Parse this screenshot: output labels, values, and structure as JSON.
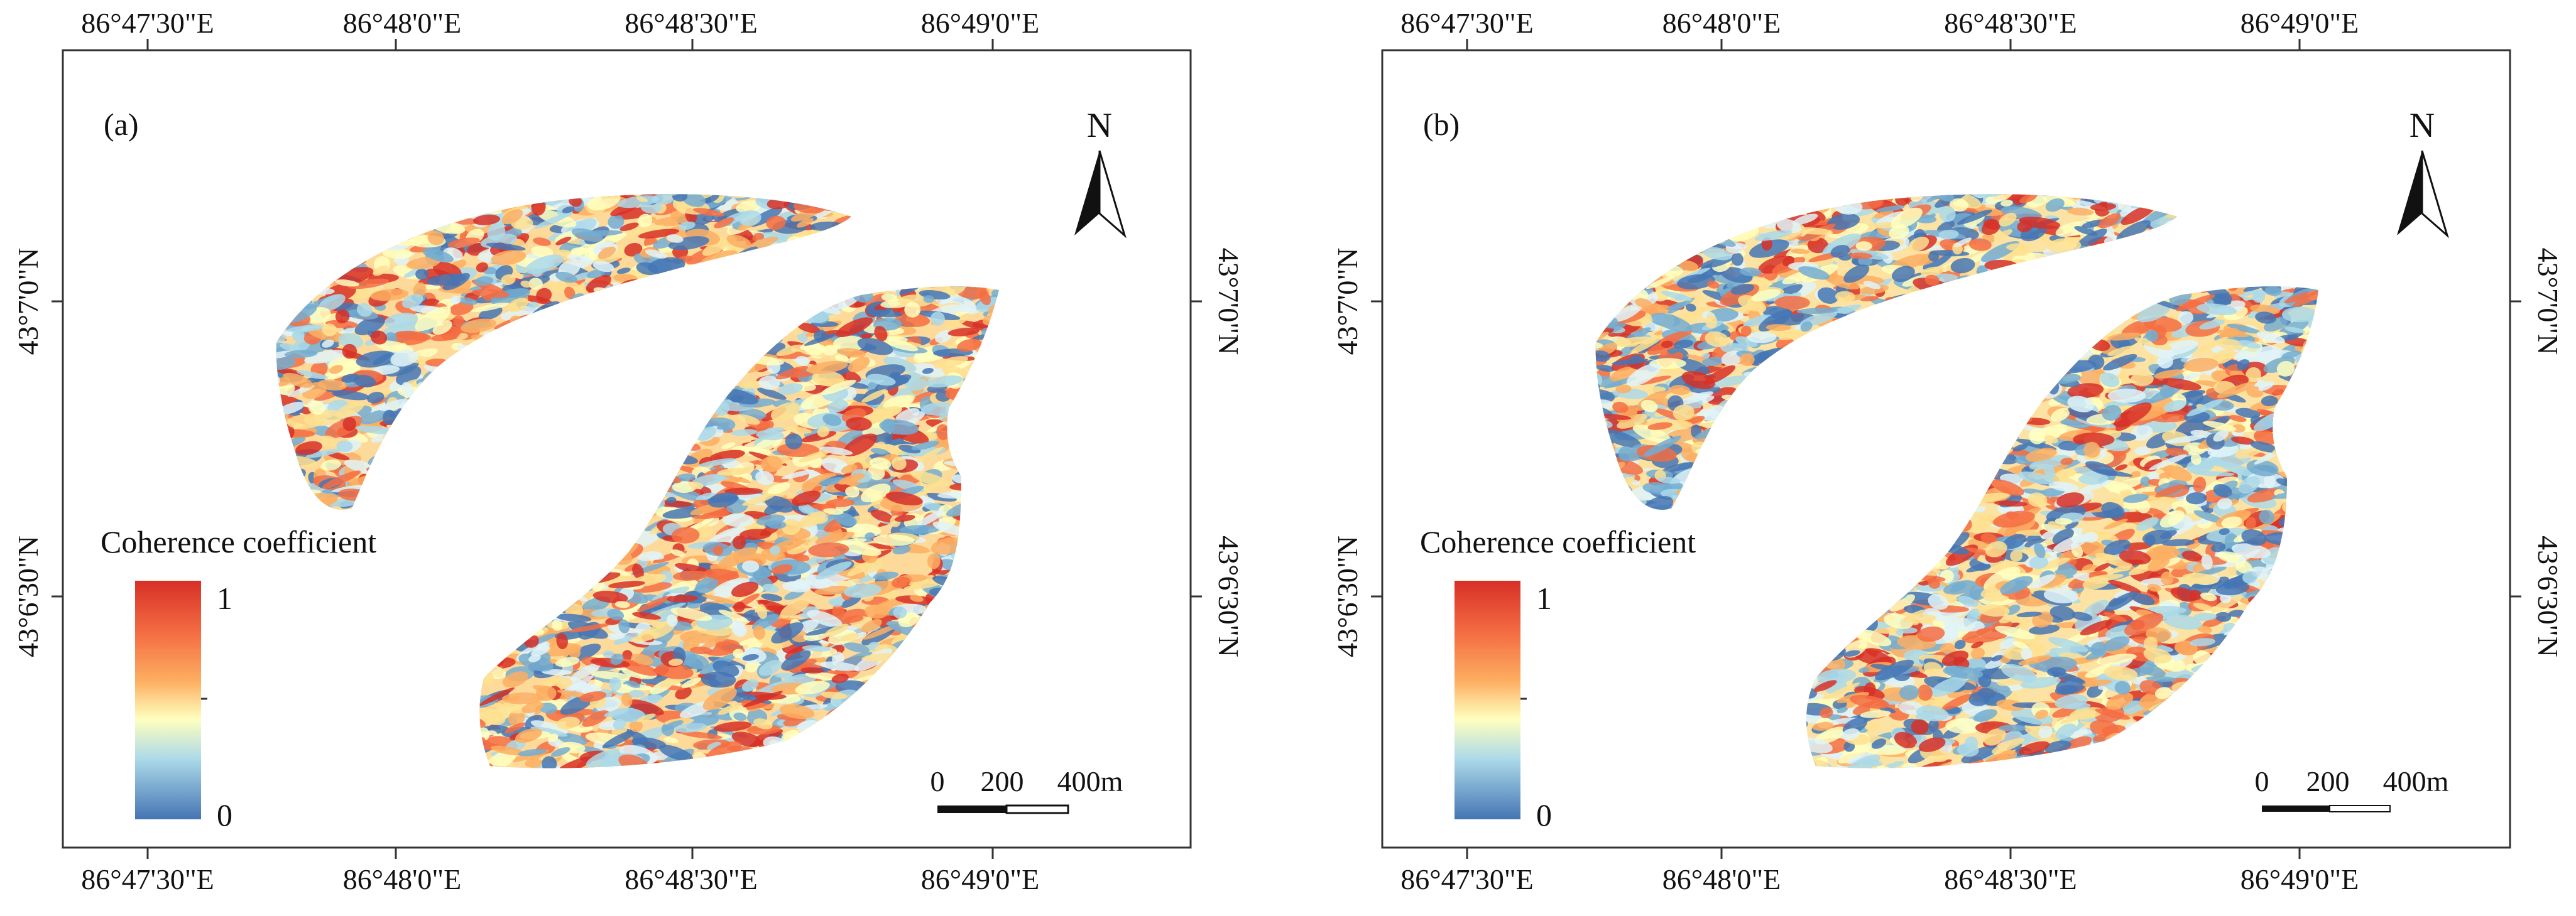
{
  "figure": {
    "panels": [
      {
        "label": "(a)",
        "top_ticks": [
          "86°47'30\"E",
          "86°48'0\"E",
          "86°48'30\"E",
          "86°49'0\"E"
        ],
        "bottom_ticks": [
          "86°47'30\"E",
          "86°48'0\"E",
          "86°48'30\"E",
          "86°49'0\"E"
        ],
        "left_ticks": [
          "43°7'0\"N",
          "43°6'30\"N"
        ],
        "right_ticks": [
          "43°7'0\"N",
          "43°6'30\"N"
        ],
        "north_label": "N",
        "legend": {
          "title": "Coherence coefficient",
          "max": "1",
          "min": "0"
        },
        "scale_bar": {
          "labels": [
            "0",
            "200",
            "400m"
          ]
        }
      },
      {
        "label": "(b)",
        "top_ticks": [
          "86°47'30\"E",
          "86°48'0\"E",
          "86°48'30\"E",
          "86°49'0\"E"
        ],
        "bottom_ticks": [
          "86°47'30\"E",
          "86°48'0\"E",
          "86°48'30\"E",
          "86°49'0\"E"
        ],
        "left_ticks": [
          "43°7'0\"N",
          "43°6'30\"N"
        ],
        "right_ticks": [
          "43°7'0\"N",
          "43°6'30\"N"
        ],
        "north_label": "N",
        "legend": {
          "title": "Coherence coefficient",
          "max": "1",
          "min": "0"
        },
        "scale_bar": {
          "labels": [
            "0",
            "200",
            "400m"
          ]
        }
      }
    ],
    "colormap": [
      "#d73027",
      "#f46d43",
      "#fdae61",
      "#fee090",
      "#ffffbf",
      "#e0f3f8",
      "#abd9e9",
      "#74add1",
      "#4575b4"
    ]
  }
}
